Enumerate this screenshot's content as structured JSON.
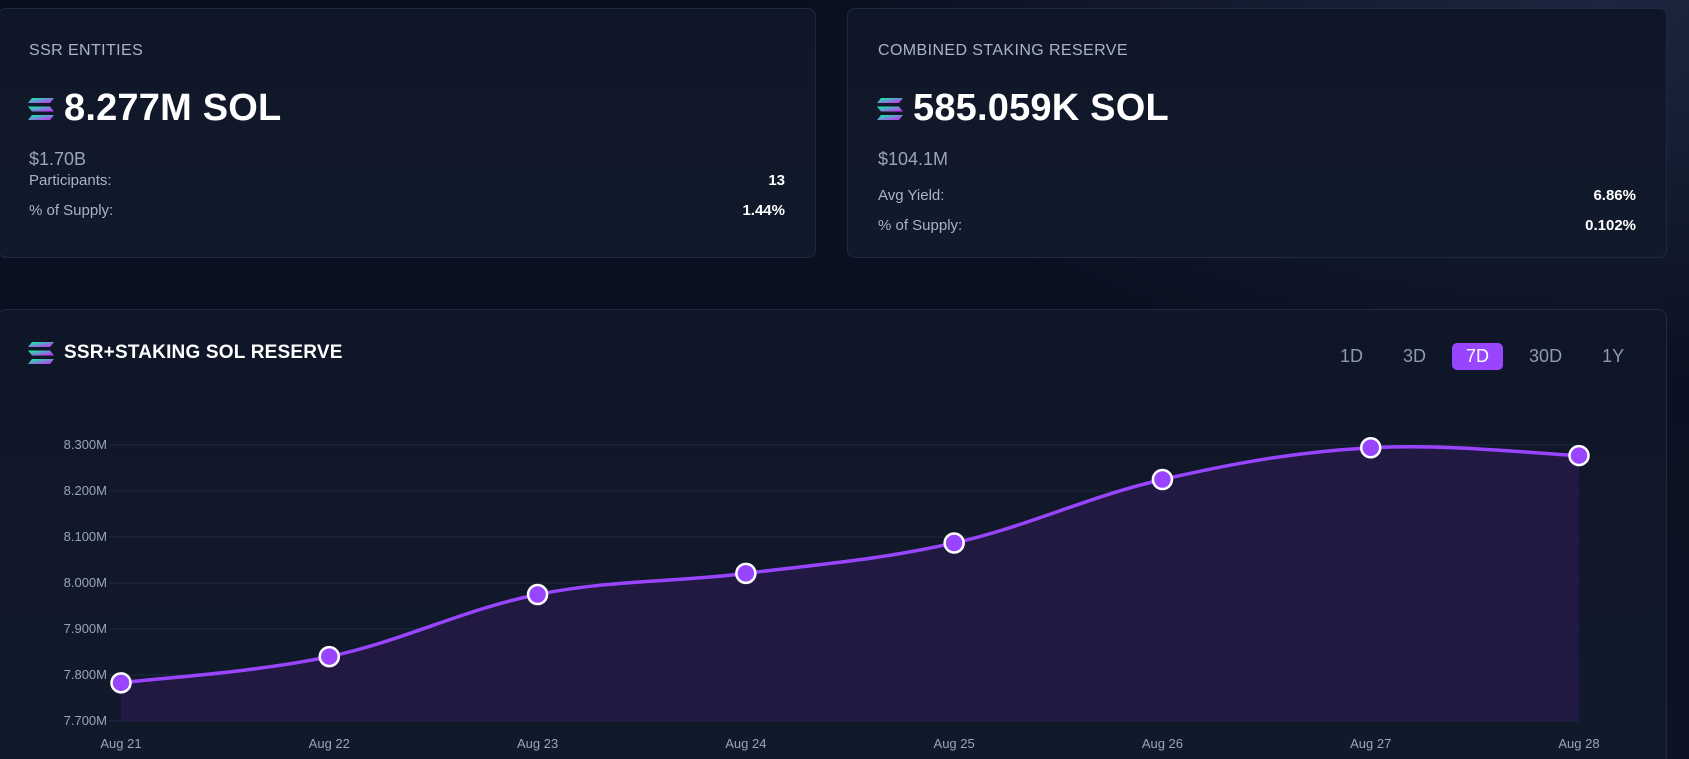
{
  "ssr_card": {
    "label": "SSR ENTITIES",
    "value": "8.277M SOL",
    "usd": "$1.70B",
    "stats": [
      {
        "label": "Participants:",
        "value": "13"
      },
      {
        "label": "% of Supply:",
        "value": "1.44%"
      }
    ]
  },
  "staking_card": {
    "label": "COMBINED STAKING RESERVE",
    "value": "585.059K SOL",
    "usd": "$104.1M",
    "stats": [
      {
        "label": "Avg Yield:",
        "value": "6.86%"
      },
      {
        "label": "% of Supply:",
        "value": "0.102%"
      }
    ]
  },
  "chart_panel": {
    "title": "SSR+STAKING SOL RESERVE",
    "ranges": [
      "1D",
      "3D",
      "7D",
      "30D",
      "1Y"
    ],
    "active_range": "7D"
  },
  "colors": {
    "accent": "#9945ff",
    "line": "#9945ff",
    "area": "#241a45",
    "grid": "#1f2940"
  },
  "icons": {
    "token": "solana-logo-icon"
  },
  "chart_data": {
    "type": "area",
    "title": "SSR+STAKING SOL RESERVE",
    "x": [
      "Aug 21",
      "Aug 22",
      "Aug 23",
      "Aug 24",
      "Aug 25",
      "Aug 26",
      "Aug 27",
      "Aug 28"
    ],
    "series": [
      {
        "values": [
          7.783,
          7.84,
          7.975,
          8.021,
          8.087,
          8.225,
          8.294,
          8.277
        ]
      }
    ],
    "ylim": [
      7.7,
      8.3
    ],
    "yticks": [
      "7.700M",
      "7.800M",
      "7.900M",
      "8.000M",
      "8.100M",
      "8.200M",
      "8.300M"
    ],
    "grid": true,
    "xlabel": "",
    "ylabel": ""
  }
}
